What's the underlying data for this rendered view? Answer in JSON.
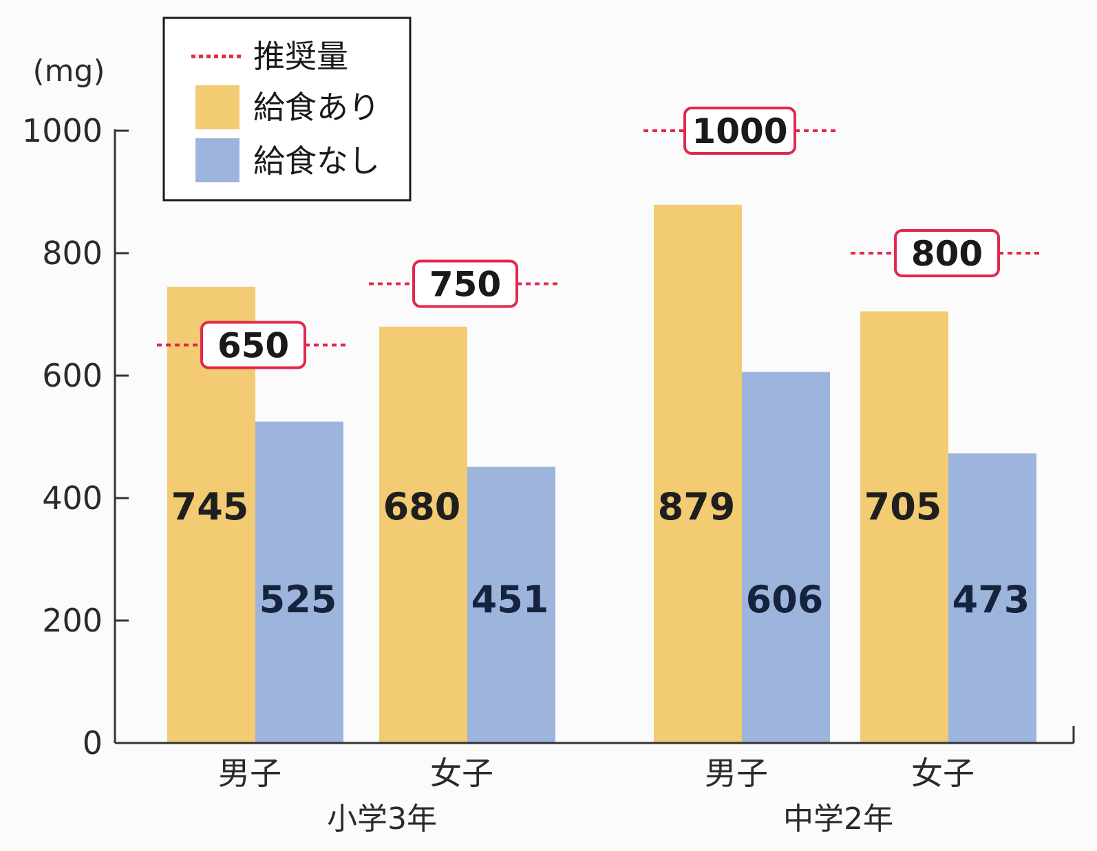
{
  "chart_data": {
    "type": "bar",
    "ylabel": "(mg)",
    "ylim": [
      0,
      1000
    ],
    "yticks": [
      0,
      200,
      400,
      600,
      800,
      1000
    ],
    "groups": [
      {
        "label": "小学3年",
        "categories": [
          "男子",
          "女子"
        ]
      },
      {
        "label": "中学2年",
        "categories": [
          "男子",
          "女子"
        ]
      }
    ],
    "categories": [
      "男子",
      "女子",
      "男子",
      "女子"
    ],
    "series": [
      {
        "name": "給食あり",
        "color": "#f2cb72",
        "values": [
          745,
          680,
          879,
          705
        ]
      },
      {
        "name": "給食なし",
        "color": "#9db4dd",
        "values": [
          525,
          451,
          606,
          473
        ]
      }
    ],
    "recommended": {
      "name": "推奨量",
      "color": "#e0294d",
      "values": [
        650,
        750,
        1000,
        800
      ]
    },
    "legend": [
      "推奨量",
      "給食あり",
      "給食なし"
    ],
    "legend_position": "top-left"
  }
}
